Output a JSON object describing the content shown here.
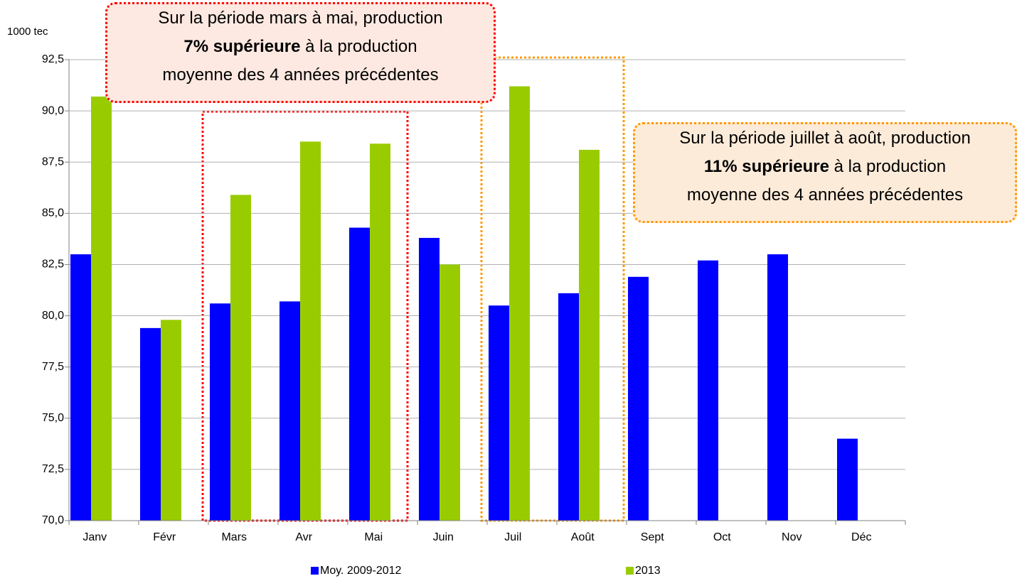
{
  "chart_data": {
    "type": "bar",
    "unit_label": "1000 tec",
    "categories": [
      "Janv",
      "Févr",
      "Mars",
      "Avr",
      "Mai",
      "Juin",
      "Juil",
      "Août",
      "Sept",
      "Oct",
      "Nov",
      "Déc"
    ],
    "series": [
      {
        "name": "Moy. 2009-2012",
        "color": "#0000ff",
        "values": [
          83.0,
          79.4,
          80.6,
          80.7,
          84.3,
          83.8,
          80.5,
          81.1,
          81.9,
          82.7,
          83.0,
          74.0
        ]
      },
      {
        "name": "2013",
        "color": "#99cc00",
        "values": [
          90.7,
          79.8,
          85.9,
          88.5,
          88.4,
          82.5,
          91.2,
          88.1,
          null,
          null,
          null,
          null
        ]
      }
    ],
    "ylim": [
      70,
      92.5
    ],
    "yticks": [
      {
        "value": 70,
        "label": "70,0"
      },
      {
        "value": 72.5,
        "label": "72,5"
      },
      {
        "value": 75,
        "label": "75,0"
      },
      {
        "value": 77.5,
        "label": "77,5"
      },
      {
        "value": 80,
        "label": "80,0"
      },
      {
        "value": 82.5,
        "label": "82,5"
      },
      {
        "value": 85,
        "label": "85,0"
      },
      {
        "value": 87.5,
        "label": "87,5"
      },
      {
        "value": 90,
        "label": "90,0"
      },
      {
        "value": 92.5,
        "label": "92,5"
      }
    ],
    "grid": true,
    "annotations": [
      {
        "line1": "Sur la période mars à mai, production",
        "bold": "7% supérieure",
        "rest": " à la production",
        "line3": "moyenne des 4 années précédentes"
      },
      {
        "line1": "Sur la période juillet à août, production",
        "bold": "11% supérieure",
        "rest": " à la production",
        "line3": "moyenne des 4 années précédentes"
      }
    ]
  }
}
